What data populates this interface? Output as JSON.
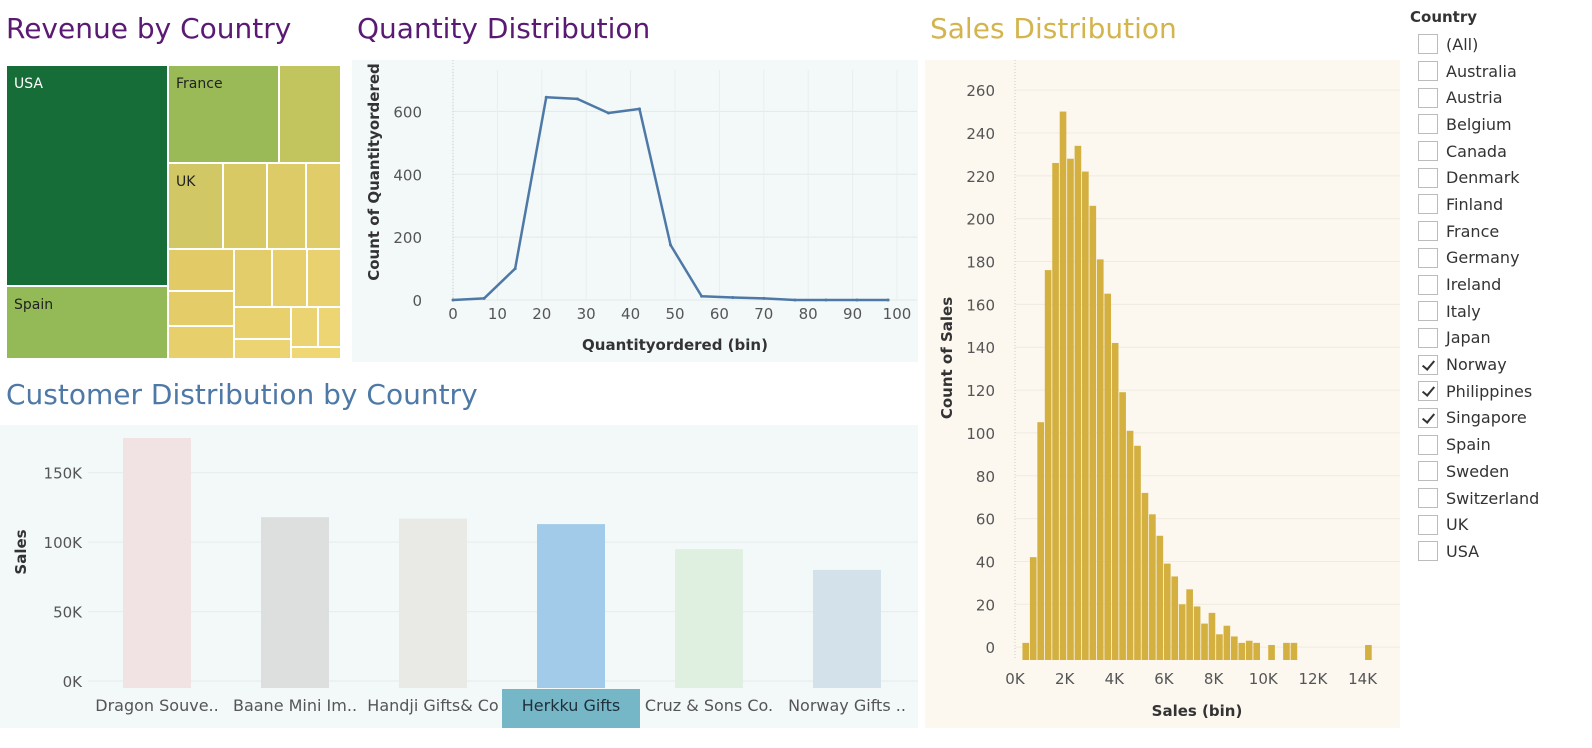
{
  "titles": {
    "revenue": "Revenue by Country",
    "quantity": "Quantity Distribution",
    "sales": "Sales Distribution",
    "customer": "Customer Distribution by Country"
  },
  "colors": {
    "title_purple": "#5a1a73",
    "title_gold": "#d4b44c",
    "title_blue": "#4e79a7",
    "line": "#4e79a7",
    "hist": "#d4b040",
    "quantity_bg": "#f3f8f8",
    "customer_bg": "#f3f8f8",
    "sales_bg": "#fcf8f0"
  },
  "treemap": {
    "labels": {
      "usa": "USA",
      "france": "France",
      "uk": "UK",
      "spain": "Spain"
    }
  },
  "filter": {
    "title": "Country",
    "items": [
      {
        "label": "(All)",
        "checked": false
      },
      {
        "label": "Australia",
        "checked": false
      },
      {
        "label": "Austria",
        "checked": false
      },
      {
        "label": "Belgium",
        "checked": false
      },
      {
        "label": "Canada",
        "checked": false
      },
      {
        "label": "Denmark",
        "checked": false
      },
      {
        "label": "Finland",
        "checked": false
      },
      {
        "label": "France",
        "checked": false
      },
      {
        "label": "Germany",
        "checked": false
      },
      {
        "label": "Ireland",
        "checked": false
      },
      {
        "label": "Italy",
        "checked": false
      },
      {
        "label": "Japan",
        "checked": false
      },
      {
        "label": "Norway",
        "checked": true
      },
      {
        "label": "Philippines",
        "checked": true
      },
      {
        "label": "Singapore",
        "checked": true
      },
      {
        "label": "Spain",
        "checked": false
      },
      {
        "label": "Sweden",
        "checked": false
      },
      {
        "label": "Switzerland",
        "checked": false
      },
      {
        "label": "UK",
        "checked": false
      },
      {
        "label": "USA",
        "checked": false
      }
    ]
  },
  "chart_data": [
    {
      "type": "line",
      "title": "Quantity Distribution",
      "xlabel": "Quantityordered (bin)",
      "ylabel": "Count of Quantityordered",
      "xlim": [
        0,
        100
      ],
      "ylim": [
        0,
        700
      ],
      "xticks": [
        0,
        10,
        20,
        30,
        40,
        50,
        60,
        70,
        80,
        90,
        100
      ],
      "yticks": [
        0,
        200,
        400,
        600
      ],
      "x": [
        0,
        7,
        14,
        21,
        28,
        35,
        42,
        49,
        56,
        63,
        70,
        77,
        84,
        91,
        98
      ],
      "y": [
        0,
        5,
        100,
        645,
        640,
        595,
        608,
        175,
        12,
        8,
        5,
        0,
        0,
        0,
        0
      ]
    },
    {
      "type": "bar",
      "title": "Sales Distribution",
      "xlabel": "Sales (bin)",
      "ylabel": "Count of Sales",
      "xlim": [
        0,
        14500
      ],
      "ylim": [
        -6,
        268
      ],
      "xticks": [
        0,
        2000,
        4000,
        6000,
        8000,
        10000,
        12000,
        14000
      ],
      "xtick_labels": [
        "0K",
        "2K",
        "4K",
        "6K",
        "8K",
        "10K",
        "12K",
        "14K"
      ],
      "yticks": [
        0,
        20,
        40,
        60,
        80,
        100,
        120,
        140,
        160,
        180,
        200,
        220,
        240,
        260
      ],
      "bin_width": 300,
      "bin_starts": [
        300,
        600,
        900,
        1200,
        1500,
        1800,
        2100,
        2400,
        2700,
        3000,
        3300,
        3600,
        3900,
        4200,
        4500,
        4800,
        5100,
        5400,
        5700,
        6000,
        6300,
        6600,
        6900,
        7200,
        7500,
        7800,
        8100,
        8400,
        8700,
        9000,
        9300,
        9600,
        9900,
        10200,
        10500,
        10800,
        11100,
        11400,
        11700,
        12000,
        12300,
        12600,
        12900,
        13200,
        13500,
        13800,
        14100
      ],
      "values": [
        2,
        42,
        105,
        176,
        226,
        250,
        228,
        234,
        222,
        206,
        181,
        165,
        142,
        119,
        101,
        94,
        72,
        62,
        52,
        39,
        33,
        20,
        27,
        19,
        11,
        16,
        6,
        10,
        5,
        2,
        3,
        2,
        0,
        1,
        0,
        2,
        2,
        0,
        0,
        0,
        0,
        0,
        0,
        0,
        0,
        0,
        1
      ]
    },
    {
      "type": "bar",
      "title": "Customer Distribution by Country",
      "ylabel": "Sales",
      "ylim": [
        -5000,
        175000
      ],
      "yticks": [
        0,
        50000,
        100000,
        150000
      ],
      "ytick_labels": [
        "0K",
        "50K",
        "100K",
        "150K"
      ],
      "categories": [
        "Dragon Souve..",
        "Baane Mini Im..",
        "Handji Gifts& Co",
        "Herkku Gifts",
        "Cruz & Sons Co.",
        "Norway Gifts .."
      ],
      "values": [
        175000,
        118000,
        117000,
        113000,
        95000,
        80000
      ],
      "colors": [
        "#f1e3e3",
        "#dcdfde",
        "#e9e9e6",
        "#a1cbe8",
        "#dff0e0",
        "#d3e2ea"
      ],
      "highlighted": "Herkku Gifts"
    }
  ]
}
